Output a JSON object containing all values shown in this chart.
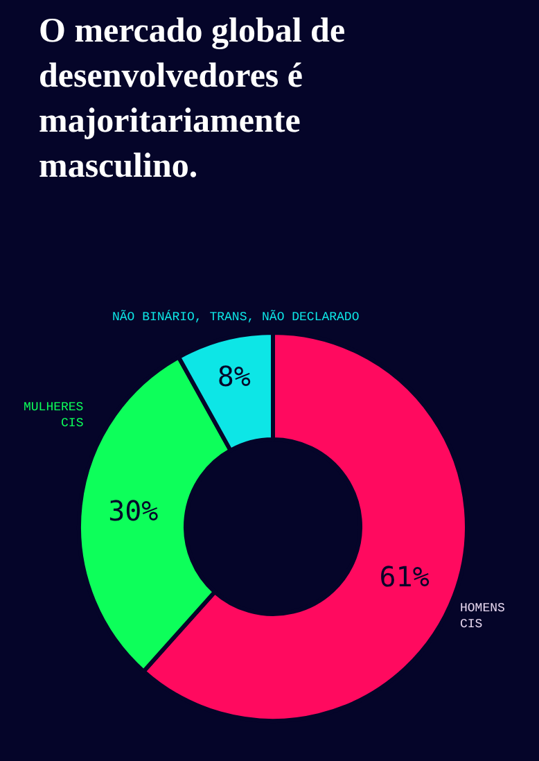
{
  "chart_data": {
    "type": "donut",
    "title": "O mercado global de desenvolvedores é majoritariamente masculino.",
    "categories": [
      "HOMENS CIS",
      "MULHERES CIS",
      "NÃO BINÁRIO, TRANS, NÃO DECLARADO"
    ],
    "values": [
      61,
      30,
      8
    ],
    "value_labels": [
      "61%",
      "30%",
      "8%"
    ],
    "colors": [
      "#ff0a5f",
      "#0dff5a",
      "#0de6e6"
    ],
    "legend": false
  }
}
